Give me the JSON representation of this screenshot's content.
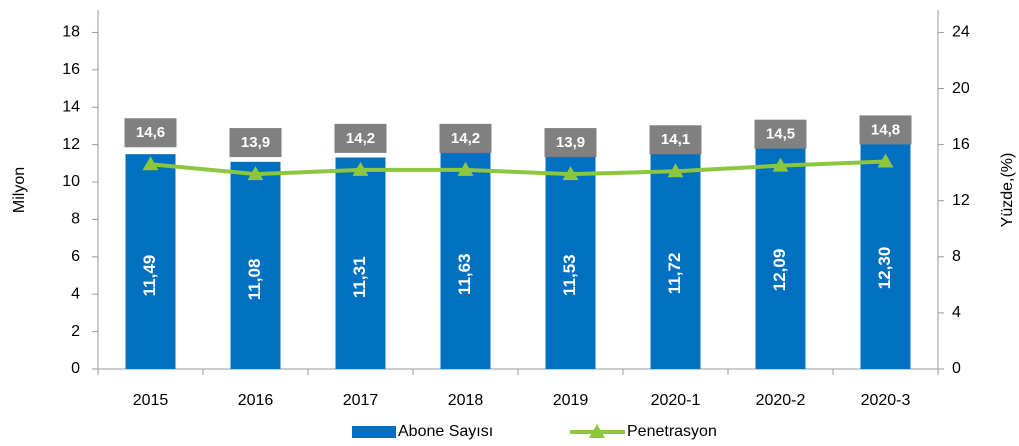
{
  "chart_data": {
    "type": "bar",
    "categories": [
      "2015",
      "2016",
      "2017",
      "2018",
      "2019",
      "2020-1",
      "2020-2",
      "2020-3"
    ],
    "ylabel": "Milyon",
    "y2label": "Yüzde,(%)",
    "ylim": [
      0,
      19.2
    ],
    "yticks": [
      0,
      2,
      4,
      6,
      8,
      10,
      12,
      14,
      16,
      18
    ],
    "y2lim": [
      0,
      25.6
    ],
    "y2ticks": [
      0,
      4,
      8,
      12,
      16,
      20,
      24
    ],
    "legend": "bottom",
    "series": [
      {
        "name": "Abone Sayısı",
        "type": "bar",
        "color": "#0070c0",
        "values": [
          11.49,
          11.08,
          11.31,
          11.63,
          11.53,
          11.72,
          12.09,
          12.3
        ],
        "value_labels": [
          "11,49",
          "11,08",
          "11,31",
          "11,63",
          "11,53",
          "11,72",
          "12,09",
          "12,30"
        ]
      },
      {
        "name": "Penetrasyon",
        "type": "line",
        "axis": "y2",
        "color": "#8dc63f",
        "values": [
          14.6,
          13.9,
          14.2,
          14.2,
          13.9,
          14.1,
          14.5,
          14.8
        ],
        "value_labels": [
          "14,6",
          "13,9",
          "14,2",
          "14,2",
          "13,9",
          "14,1",
          "14,5",
          "14,8"
        ]
      }
    ]
  }
}
